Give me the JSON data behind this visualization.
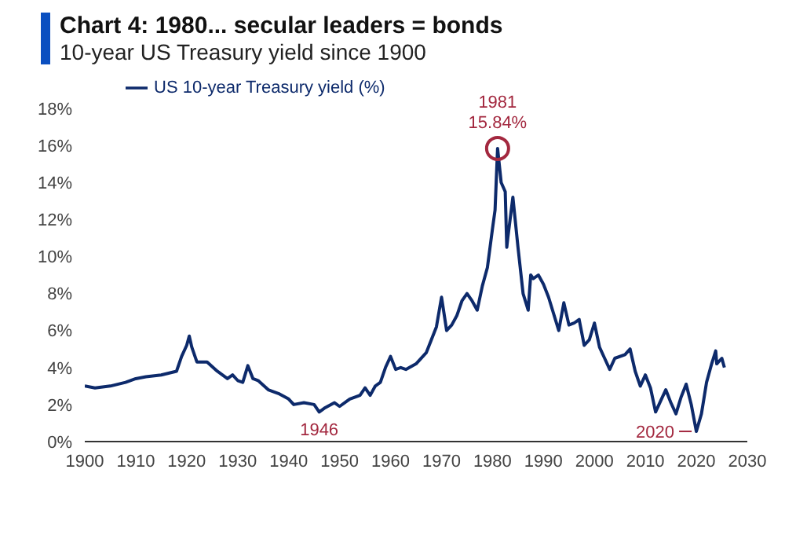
{
  "chart_data": {
    "type": "line",
    "title": "Chart 4: 1980... secular leaders = bonds",
    "subtitle": "10-year US Treasury yield since 1900",
    "x": [
      1900,
      1902,
      1905,
      1908,
      1910,
      1912,
      1915,
      1918,
      1919,
      1920,
      1920.5,
      1921,
      1922,
      1924,
      1926,
      1928,
      1929,
      1930,
      1931,
      1932,
      1933,
      1934,
      1936,
      1938,
      1940,
      1941,
      1943,
      1945,
      1946,
      1947,
      1949,
      1950,
      1952,
      1954,
      1955,
      1956,
      1957,
      1958,
      1959,
      1960,
      1961,
      1962,
      1963,
      1965,
      1967,
      1968,
      1969,
      1970,
      1971,
      1972,
      1973,
      1974,
      1975,
      1976,
      1977,
      1978,
      1979,
      1980,
      1980.5,
      1981,
      1981.7,
      1982.5,
      1982.8,
      1983,
      1984,
      1985,
      1986,
      1987,
      1987.5,
      1988,
      1989,
      1990,
      1991,
      1993,
      1994,
      1995,
      1996,
      1997,
      1998,
      1999,
      2000,
      2001,
      2002,
      2003,
      2004,
      2006,
      2007,
      2008,
      2009,
      2010,
      2011,
      2012,
      2013,
      2014,
      2015,
      2016,
      2017,
      2018,
      2019,
      2020,
      2021,
      2022,
      2023,
      2023.8,
      2024,
      2025,
      2025.5
    ],
    "series": [
      {
        "name": "US 10-year Treasury yield (%)",
        "color": "#0d2a6b",
        "values": [
          3.0,
          2.9,
          3.0,
          3.2,
          3.4,
          3.5,
          3.6,
          3.8,
          4.6,
          5.2,
          5.7,
          5.1,
          4.3,
          4.3,
          3.8,
          3.4,
          3.6,
          3.3,
          3.2,
          4.1,
          3.4,
          3.3,
          2.8,
          2.6,
          2.3,
          2.0,
          2.1,
          2.0,
          1.6,
          1.8,
          2.1,
          1.9,
          2.3,
          2.5,
          2.9,
          2.5,
          3.0,
          3.2,
          4.0,
          4.6,
          3.9,
          4.0,
          3.9,
          4.2,
          4.8,
          5.5,
          6.2,
          7.8,
          6.0,
          6.3,
          6.8,
          7.6,
          8.0,
          7.6,
          7.1,
          8.4,
          9.4,
          11.5,
          12.5,
          15.84,
          14.0,
          13.5,
          10.5,
          11.0,
          13.2,
          10.5,
          8.0,
          7.1,
          9.0,
          8.8,
          9.0,
          8.5,
          7.8,
          6.0,
          7.5,
          6.3,
          6.4,
          6.6,
          5.2,
          5.5,
          6.4,
          5.1,
          4.5,
          3.9,
          4.5,
          4.7,
          5.0,
          3.8,
          3.0,
          3.6,
          2.9,
          1.6,
          2.2,
          2.8,
          2.1,
          1.5,
          2.4,
          3.1,
          2.0,
          0.55,
          1.5,
          3.2,
          4.2,
          4.9,
          4.2,
          4.5,
          4.0
        ]
      }
    ],
    "xlim": [
      1900,
      2030
    ],
    "xticks": [
      1900,
      1910,
      1920,
      1930,
      1940,
      1950,
      1960,
      1970,
      1980,
      1990,
      2000,
      2010,
      2020,
      2030
    ],
    "ylim": [
      0,
      18
    ],
    "yticks": [
      {
        "value": 0,
        "label": "0%"
      },
      {
        "value": 2,
        "label": "2%"
      },
      {
        "value": 4,
        "label": "4%"
      },
      {
        "value": 6,
        "label": "6%"
      },
      {
        "value": 8,
        "label": "8%"
      },
      {
        "value": 10,
        "label": "10%"
      },
      {
        "value": 12,
        "label": "12%"
      },
      {
        "value": 14,
        "label": "14%"
      },
      {
        "value": 16,
        "label": "16%"
      },
      {
        "value": 18,
        "label": "18%"
      }
    ],
    "grid": false,
    "legend": "top left",
    "marker": "none",
    "line_style": "solid",
    "annotations": [
      {
        "text": "1981 15.84%",
        "x": 1981,
        "y": 15.84
      },
      {
        "text": "1946",
        "x": 1946,
        "y": 1.6
      },
      {
        "text": "2020",
        "x": 2020,
        "y": 0.55
      }
    ]
  }
}
